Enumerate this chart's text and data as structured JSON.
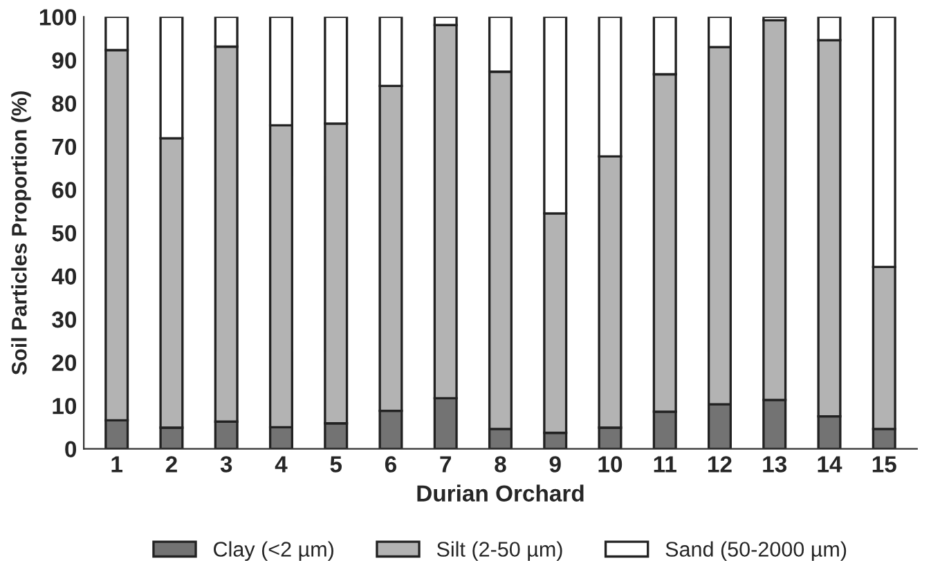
{
  "chart_data": {
    "type": "bar",
    "stacked": true,
    "xlabel": "Durian Orchard",
    "ylabel": "Soil Particles Proportion (%)",
    "categories": [
      "1",
      "2",
      "3",
      "4",
      "5",
      "6",
      "7",
      "8",
      "9",
      "10",
      "11",
      "12",
      "13",
      "14",
      "15"
    ],
    "series": [
      {
        "name": "Clay (<2 µm)",
        "color": "#737373",
        "values": [
          6.6,
          4.9,
          6.3,
          5.0,
          5.9,
          8.8,
          11.7,
          4.6,
          3.7,
          4.9,
          8.6,
          10.3,
          11.3,
          7.5,
          4.6
        ]
      },
      {
        "name": "Silt (2-50 µm)",
        "color": "#b3b3b3",
        "values": [
          85.7,
          67.0,
          86.8,
          69.9,
          69.4,
          75.2,
          86.4,
          82.7,
          50.8,
          62.8,
          78.1,
          82.7,
          87.9,
          87.1,
          37.5
        ]
      },
      {
        "name": "Sand (50-2000 µm)",
        "color": "#ffffff",
        "values": [
          7.7,
          28.1,
          6.9,
          25.1,
          24.7,
          16.0,
          1.9,
          12.7,
          45.5,
          32.3,
          13.3,
          7.0,
          0.8,
          5.4,
          57.9
        ]
      }
    ],
    "ylim": [
      0,
      100
    ],
    "yticks": [
      0,
      10,
      20,
      30,
      40,
      50,
      60,
      70,
      80,
      90,
      100
    ],
    "grid": false,
    "legend": "bottom"
  }
}
